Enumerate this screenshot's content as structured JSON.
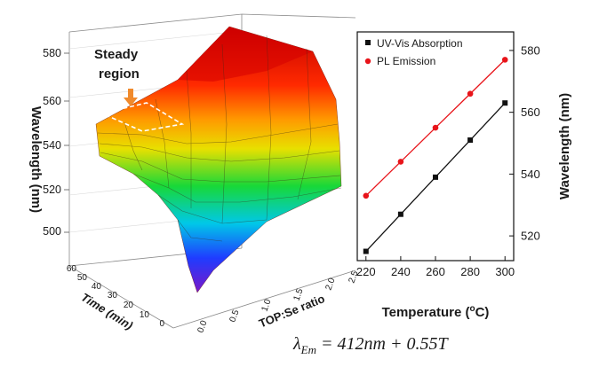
{
  "colors": {
    "uv": "#111111",
    "pl": "#e8141a",
    "annotation": "#f08a2c"
  },
  "surface_3d": {
    "type": "surface",
    "zlabel": "Wavelength (nm)",
    "xlabel": "TOP:Se ratio",
    "ylabel": "Time (min)",
    "zticks": [
      "500",
      "520",
      "540",
      "560",
      "580"
    ],
    "xticks": [
      "0.0",
      "0.5",
      "1.0",
      "1.5",
      "2.0",
      "2.5"
    ],
    "yticks": [
      "0",
      "10",
      "20",
      "30",
      "40",
      "50",
      "60"
    ],
    "annotation": "Steady region",
    "annotation_lines": [
      "Steady",
      "region"
    ],
    "colormap": [
      "#7a18c8",
      "#1f3cff",
      "#00c8e8",
      "#18d838",
      "#e8e000",
      "#ff9a00",
      "#ff2a00",
      "#c40000"
    ]
  },
  "chart_data": {
    "type": "scatter",
    "xlabel": "Temperature (°C)",
    "xlabel_prefix": "Temperature (",
    "xlabel_sup": "o",
    "xlabel_suffix": "C)",
    "ylabel": "Wavelength (nm)",
    "xlim": [
      215,
      305
    ],
    "ylim": [
      512,
      586
    ],
    "xticks": [
      220,
      240,
      260,
      280,
      300
    ],
    "yticks": [
      520,
      540,
      560,
      580
    ],
    "legend_position": "top-left",
    "series": [
      {
        "name": "UV-Vis Absorption",
        "marker": "square",
        "color": "#111111",
        "x": [
          220,
          240,
          260,
          280,
          300
        ],
        "y": [
          515,
          527,
          539,
          551,
          563
        ]
      },
      {
        "name": "PL Emission",
        "marker": "circle",
        "color": "#e8141a",
        "x": [
          220,
          240,
          260,
          280,
          300
        ],
        "y": [
          533,
          544,
          555,
          566,
          577
        ]
      }
    ]
  },
  "equation": {
    "lhs": "λ",
    "sub": "Em",
    "rhs": " = 412nm + 0.55T"
  }
}
